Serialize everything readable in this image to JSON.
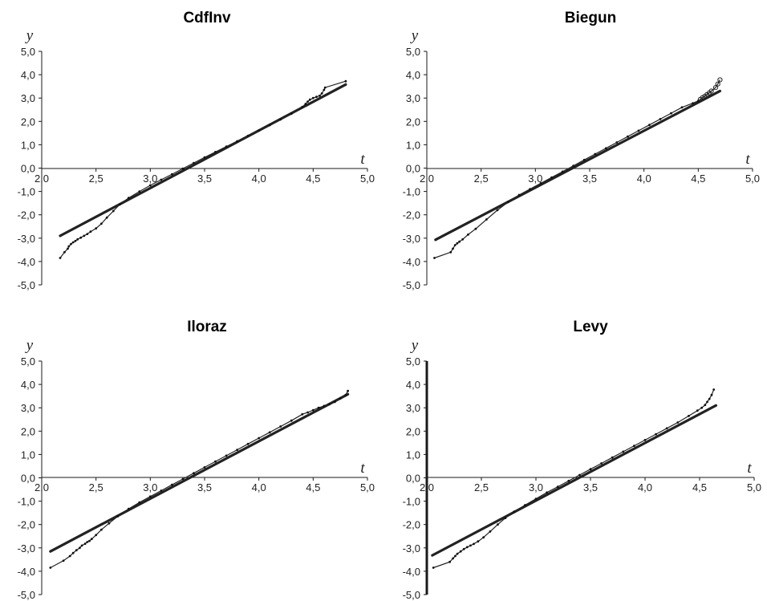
{
  "chart_data": [
    {
      "type": "scatter",
      "title": "CdfInv",
      "xlabel": "t",
      "ylabel": "y",
      "xlim": [
        2.0,
        5.0
      ],
      "ylim": [
        -5.0,
        5.0
      ],
      "xticks": [
        "2,0",
        "2,5",
        "3,0",
        "3,5",
        "4,0",
        "4,5",
        "5,0"
      ],
      "yticks": [
        "5,0",
        "4,0",
        "3,0",
        "2,0",
        "1,0",
        "0,0",
        "-1,0",
        "-2,0",
        "-3,0",
        "-4,0",
        "-5,0"
      ],
      "marker": "dot",
      "bold_y_axis": false,
      "fit_line": {
        "x": [
          2.17,
          4.8
        ],
        "y": [
          -2.9,
          3.58
        ]
      },
      "points": {
        "x": [
          2.17,
          2.21,
          2.24,
          2.25,
          2.27,
          2.29,
          2.31,
          2.33,
          2.36,
          2.39,
          2.42,
          2.45,
          2.5,
          2.55,
          2.6,
          2.66,
          2.72,
          2.8,
          2.9,
          3.0,
          3.1,
          3.2,
          3.3,
          3.4,
          3.5,
          3.6,
          3.7,
          3.8,
          3.9,
          4.0,
          4.1,
          4.2,
          4.3,
          4.4,
          4.43,
          4.45,
          4.47,
          4.5,
          4.53,
          4.56,
          4.58,
          4.6,
          4.61,
          4.8
        ],
        "y": [
          -3.85,
          -3.6,
          -3.45,
          -3.35,
          -3.25,
          -3.18,
          -3.12,
          -3.05,
          -2.98,
          -2.9,
          -2.82,
          -2.72,
          -2.58,
          -2.38,
          -2.12,
          -1.84,
          -1.55,
          -1.28,
          -1.0,
          -0.74,
          -0.5,
          -0.26,
          -0.02,
          0.22,
          0.46,
          0.69,
          0.92,
          1.15,
          1.38,
          1.61,
          1.84,
          2.08,
          2.33,
          2.62,
          2.75,
          2.85,
          2.93,
          3.0,
          3.05,
          3.1,
          3.2,
          3.35,
          3.45,
          3.72
        ]
      }
    },
    {
      "type": "scatter",
      "title": "Biegun",
      "xlabel": "t",
      "ylabel": "y",
      "xlim": [
        2.0,
        5.0
      ],
      "ylim": [
        -5.0,
        5.0
      ],
      "xticks": [
        "2,0",
        "2,5",
        "3,0",
        "3,5",
        "4,0",
        "4,5",
        "5,0"
      ],
      "yticks": [
        "5,0",
        "4,0",
        "3,0",
        "2,0",
        "1,0",
        "0,0",
        "-1,0",
        "-2,0",
        "-3,0",
        "-4,0",
        "-5,0"
      ],
      "marker": "circle",
      "bold_y_axis": false,
      "fit_line": {
        "x": [
          2.08,
          4.7
        ],
        "y": [
          -3.07,
          3.3
        ]
      },
      "points": {
        "x": [
          2.07,
          2.22,
          2.24,
          2.26,
          2.28,
          2.3,
          2.33,
          2.38,
          2.45,
          2.55,
          2.65,
          2.75,
          2.85,
          2.95,
          3.05,
          3.15,
          3.25,
          3.35,
          3.45,
          3.55,
          3.65,
          3.75,
          3.85,
          3.95,
          4.05,
          4.15,
          4.25,
          4.35,
          4.45,
          4.5,
          4.52,
          4.54,
          4.56,
          4.58,
          4.6,
          4.62,
          4.66,
          4.68,
          4.7
        ],
        "y": [
          -3.85,
          -3.6,
          -3.45,
          -3.3,
          -3.22,
          -3.15,
          -3.05,
          -2.85,
          -2.6,
          -2.2,
          -1.8,
          -1.45,
          -1.15,
          -0.9,
          -0.65,
          -0.4,
          -0.15,
          0.1,
          0.35,
          0.6,
          0.85,
          1.1,
          1.35,
          1.6,
          1.85,
          2.1,
          2.35,
          2.6,
          2.78,
          2.88,
          2.95,
          3.02,
          3.08,
          3.15,
          3.22,
          3.3,
          3.45,
          3.6,
          3.78
        ]
      }
    },
    {
      "type": "scatter",
      "title": "Iloraz",
      "xlabel": "t",
      "ylabel": "y",
      "xlim": [
        2.0,
        5.0
      ],
      "ylim": [
        -5.0,
        5.0
      ],
      "xticks": [
        "2,0",
        "2,5",
        "3,0",
        "3,5",
        "4,0",
        "4,5",
        "5,0"
      ],
      "yticks": [
        "5,0",
        "4,0",
        "3,0",
        "2,0",
        "1,0",
        "0,0",
        "-1,0",
        "-2,0",
        "-3,0",
        "-4,0",
        "-5,0"
      ],
      "marker": "dot",
      "bold_y_axis": false,
      "fit_line": {
        "x": [
          2.08,
          4.82
        ],
        "y": [
          -3.15,
          3.58
        ]
      },
      "points": {
        "x": [
          2.08,
          2.2,
          2.26,
          2.29,
          2.32,
          2.35,
          2.37,
          2.4,
          2.42,
          2.44,
          2.46,
          2.5,
          2.55,
          2.62,
          2.7,
          2.8,
          2.9,
          3.0,
          3.1,
          3.2,
          3.3,
          3.4,
          3.5,
          3.6,
          3.7,
          3.8,
          3.9,
          4.0,
          4.1,
          4.2,
          4.3,
          4.4,
          4.45,
          4.5,
          4.55,
          4.6,
          4.65,
          4.7,
          4.75,
          4.8,
          4.82
        ],
        "y": [
          -3.85,
          -3.55,
          -3.35,
          -3.22,
          -3.1,
          -3.0,
          -2.9,
          -2.82,
          -2.75,
          -2.7,
          -2.62,
          -2.45,
          -2.22,
          -1.95,
          -1.65,
          -1.33,
          -1.05,
          -0.8,
          -0.55,
          -0.3,
          -0.05,
          0.2,
          0.45,
          0.7,
          0.95,
          1.2,
          1.45,
          1.7,
          1.95,
          2.2,
          2.45,
          2.72,
          2.8,
          2.9,
          3.0,
          3.08,
          3.15,
          3.25,
          3.4,
          3.55,
          3.72
        ]
      }
    },
    {
      "type": "scatter",
      "title": "Levy",
      "xlabel": "t",
      "ylabel": "y",
      "xlim": [
        2.0,
        5.0
      ],
      "ylim": [
        -5.0,
        5.0
      ],
      "xticks": [
        "2,0",
        "2,5",
        "3,0",
        "3,5",
        "4,0",
        "4,5",
        "5,0"
      ],
      "yticks": [
        "5,0",
        "4,0",
        "3,0",
        "2,0",
        "1,0",
        "0,0",
        "-1,0",
        "-2,0",
        "-3,0",
        "-4,0",
        "-5,0"
      ],
      "marker": "dot",
      "bold_y_axis": true,
      "fit_line": {
        "x": [
          2.05,
          4.65
        ],
        "y": [
          -3.32,
          3.1
        ]
      },
      "points": {
        "x": [
          2.06,
          2.21,
          2.24,
          2.26,
          2.28,
          2.31,
          2.34,
          2.37,
          2.4,
          2.43,
          2.47,
          2.52,
          2.58,
          2.65,
          2.72,
          2.8,
          2.9,
          3.0,
          3.1,
          3.2,
          3.3,
          3.4,
          3.5,
          3.6,
          3.7,
          3.8,
          3.9,
          4.0,
          4.1,
          4.2,
          4.3,
          4.4,
          4.48,
          4.52,
          4.55,
          4.57,
          4.59,
          4.61,
          4.63
        ],
        "y": [
          -3.85,
          -3.6,
          -3.45,
          -3.35,
          -3.25,
          -3.15,
          -3.05,
          -2.97,
          -2.9,
          -2.83,
          -2.72,
          -2.55,
          -2.3,
          -2.0,
          -1.72,
          -1.45,
          -1.17,
          -0.9,
          -0.63,
          -0.38,
          -0.13,
          0.12,
          0.37,
          0.62,
          0.87,
          1.12,
          1.37,
          1.62,
          1.87,
          2.12,
          2.37,
          2.65,
          2.88,
          3.0,
          3.12,
          3.25,
          3.38,
          3.55,
          3.78
        ]
      }
    }
  ]
}
